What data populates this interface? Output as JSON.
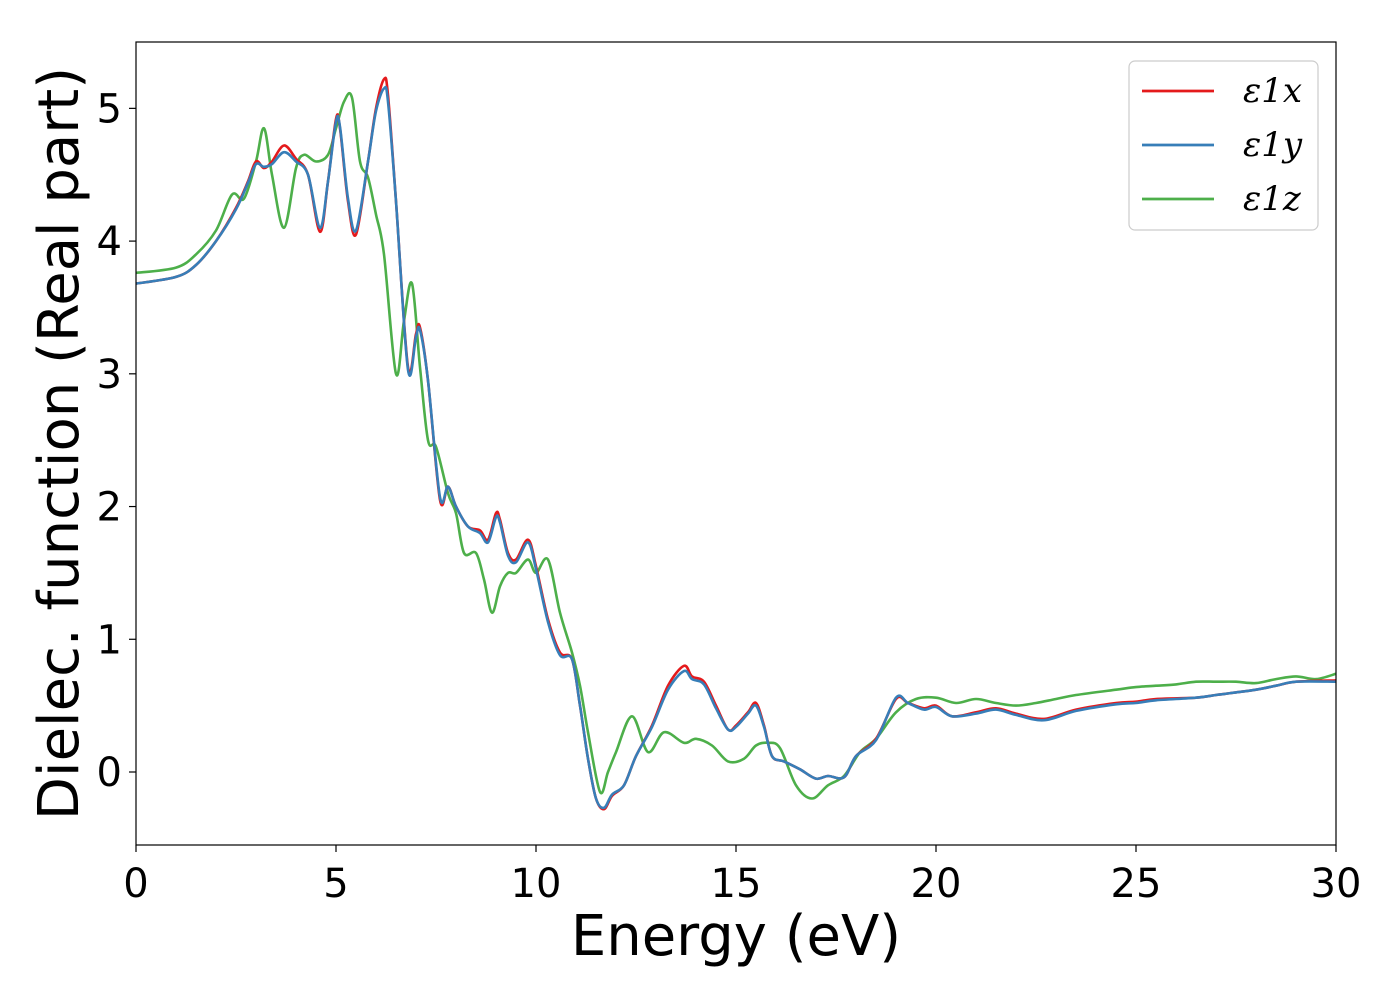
{
  "chart_data": {
    "type": "line",
    "title": "",
    "xlabel": "Energy (eV)",
    "ylabel": "Dielec. function (Real part)",
    "xlim": [
      0,
      30
    ],
    "ylim": [
      -0.55,
      5.5
    ],
    "xticks": [
      0,
      5,
      10,
      15,
      20,
      25,
      30
    ],
    "yticks": [
      0,
      1,
      2,
      3,
      4,
      5
    ],
    "grid": false,
    "legend_position": "top-right",
    "series": [
      {
        "name": "ε1x",
        "color": "#e41a1c",
        "x": [
          0,
          1,
          1.5,
          2,
          2.5,
          2.8,
          3,
          3.2,
          3.4,
          3.7,
          4.0,
          4.3,
          4.6,
          4.8,
          5.0,
          5.1,
          5.3,
          5.5,
          5.8,
          6.0,
          6.2,
          6.3,
          6.5,
          6.8,
          7.0,
          7.1,
          7.3,
          7.6,
          7.8,
          8.0,
          8.3,
          8.6,
          8.8,
          9.0,
          9.1,
          9.3,
          9.5,
          9.8,
          10.0,
          10.3,
          10.6,
          10.9,
          11.1,
          11.3,
          11.5,
          11.7,
          11.9,
          12.2,
          12.5,
          12.9,
          13.3,
          13.7,
          13.9,
          14.2,
          14.5,
          14.8,
          15.0,
          15.3,
          15.5,
          15.7,
          15.9,
          16.2,
          16.6,
          17.0,
          17.3,
          17.7,
          18.0,
          18.5,
          19.0,
          19.3,
          19.7,
          20.0,
          20.4,
          21.0,
          21.5,
          22.0,
          22.7,
          23.5,
          24.5,
          25.0,
          25.5,
          26.5,
          27.0,
          27.5,
          28.0,
          28.5,
          29.0,
          30.0
        ],
        "y": [
          3.68,
          3.73,
          3.82,
          4.0,
          4.25,
          4.45,
          4.6,
          4.55,
          4.6,
          4.72,
          4.62,
          4.5,
          4.07,
          4.45,
          4.92,
          4.85,
          4.3,
          4.05,
          4.6,
          5.0,
          5.22,
          5.1,
          4.3,
          3.05,
          3.3,
          3.35,
          2.95,
          2.05,
          2.15,
          2.0,
          1.85,
          1.82,
          1.75,
          1.95,
          1.9,
          1.65,
          1.6,
          1.75,
          1.55,
          1.15,
          0.9,
          0.85,
          0.5,
          0.1,
          -0.2,
          -0.28,
          -0.18,
          -0.1,
          0.12,
          0.35,
          0.65,
          0.8,
          0.72,
          0.68,
          0.5,
          0.32,
          0.35,
          0.45,
          0.52,
          0.35,
          0.12,
          0.08,
          0.02,
          -0.05,
          -0.03,
          -0.04,
          0.12,
          0.25,
          0.55,
          0.52,
          0.48,
          0.5,
          0.42,
          0.45,
          0.48,
          0.44,
          0.4,
          0.47,
          0.52,
          0.53,
          0.55,
          0.56,
          0.58,
          0.6,
          0.62,
          0.65,
          0.68,
          0.69
        ]
      },
      {
        "name": "ε1y",
        "color": "#377eb8",
        "x": [
          0,
          1,
          1.5,
          2,
          2.5,
          2.8,
          3,
          3.2,
          3.4,
          3.7,
          4.0,
          4.3,
          4.6,
          4.8,
          5.0,
          5.1,
          5.3,
          5.5,
          5.8,
          6.0,
          6.2,
          6.3,
          6.5,
          6.8,
          7.0,
          7.1,
          7.3,
          7.6,
          7.8,
          8.0,
          8.3,
          8.6,
          8.8,
          9.0,
          9.1,
          9.3,
          9.5,
          9.8,
          10.0,
          10.3,
          10.6,
          10.9,
          11.1,
          11.3,
          11.5,
          11.7,
          11.9,
          12.2,
          12.5,
          12.9,
          13.3,
          13.7,
          13.9,
          14.2,
          14.5,
          14.8,
          15.0,
          15.3,
          15.5,
          15.7,
          15.9,
          16.2,
          16.6,
          17.0,
          17.3,
          17.7,
          18.0,
          18.5,
          19.0,
          19.3,
          19.7,
          20.0,
          20.4,
          21.0,
          21.5,
          22.0,
          22.7,
          23.5,
          24.5,
          25.0,
          25.5,
          26.5,
          27.0,
          27.5,
          28.0,
          28.5,
          29.0,
          30.0
        ],
        "y": [
          3.68,
          3.73,
          3.82,
          4.0,
          4.24,
          4.44,
          4.58,
          4.56,
          4.58,
          4.67,
          4.6,
          4.5,
          4.1,
          4.45,
          4.9,
          4.86,
          4.32,
          4.08,
          4.6,
          4.98,
          5.15,
          5.05,
          4.3,
          3.03,
          3.28,
          3.33,
          2.95,
          2.07,
          2.15,
          2.0,
          1.85,
          1.8,
          1.73,
          1.92,
          1.88,
          1.63,
          1.58,
          1.73,
          1.53,
          1.13,
          0.88,
          0.85,
          0.5,
          0.1,
          -0.2,
          -0.27,
          -0.17,
          -0.1,
          0.12,
          0.34,
          0.62,
          0.76,
          0.7,
          0.66,
          0.48,
          0.32,
          0.34,
          0.44,
          0.5,
          0.34,
          0.12,
          0.08,
          0.02,
          -0.05,
          -0.03,
          -0.04,
          0.12,
          0.24,
          0.56,
          0.52,
          0.47,
          0.49,
          0.42,
          0.44,
          0.47,
          0.43,
          0.39,
          0.46,
          0.51,
          0.52,
          0.54,
          0.56,
          0.58,
          0.6,
          0.62,
          0.65,
          0.68,
          0.68
        ]
      },
      {
        "name": "ε1z",
        "color": "#4daf4a",
        "x": [
          0,
          1,
          1.5,
          2,
          2.4,
          2.7,
          3.0,
          3.2,
          3.4,
          3.7,
          4.0,
          4.2,
          4.5,
          4.8,
          5.0,
          5.2,
          5.4,
          5.6,
          5.8,
          6.0,
          6.2,
          6.5,
          6.7,
          6.9,
          7.1,
          7.3,
          7.5,
          7.8,
          8.0,
          8.2,
          8.5,
          8.7,
          8.9,
          9.1,
          9.3,
          9.5,
          9.8,
          10.0,
          10.3,
          10.6,
          10.9,
          11.1,
          11.3,
          11.6,
          11.8,
          12.0,
          12.4,
          12.8,
          13.2,
          13.7,
          14.0,
          14.4,
          14.8,
          15.2,
          15.5,
          15.8,
          16.1,
          16.5,
          16.9,
          17.3,
          17.7,
          18.1,
          18.5,
          19.0,
          19.5,
          20.0,
          20.5,
          21.0,
          21.5,
          22.0,
          22.5,
          23.0,
          23.5,
          24.5,
          25.0,
          25.5,
          26.0,
          26.5,
          27.0,
          27.5,
          28.0,
          28.5,
          29.0,
          29.5,
          30.0
        ],
        "y": [
          3.76,
          3.8,
          3.9,
          4.08,
          4.35,
          4.32,
          4.6,
          4.85,
          4.5,
          4.1,
          4.55,
          4.65,
          4.6,
          4.65,
          4.85,
          5.05,
          5.08,
          4.6,
          4.48,
          4.2,
          3.9,
          3.0,
          3.4,
          3.68,
          3.05,
          2.5,
          2.45,
          2.1,
          1.95,
          1.65,
          1.65,
          1.45,
          1.2,
          1.4,
          1.5,
          1.5,
          1.6,
          1.5,
          1.6,
          1.2,
          0.9,
          0.65,
          0.3,
          -0.15,
          0.0,
          0.15,
          0.42,
          0.15,
          0.3,
          0.22,
          0.25,
          0.2,
          0.08,
          0.1,
          0.2,
          0.22,
          0.18,
          -0.1,
          -0.2,
          -0.1,
          -0.03,
          0.15,
          0.25,
          0.45,
          0.55,
          0.56,
          0.52,
          0.55,
          0.52,
          0.5,
          0.52,
          0.55,
          0.58,
          0.62,
          0.64,
          0.65,
          0.66,
          0.68,
          0.68,
          0.68,
          0.67,
          0.7,
          0.72,
          0.7,
          0.74
        ]
      }
    ]
  }
}
